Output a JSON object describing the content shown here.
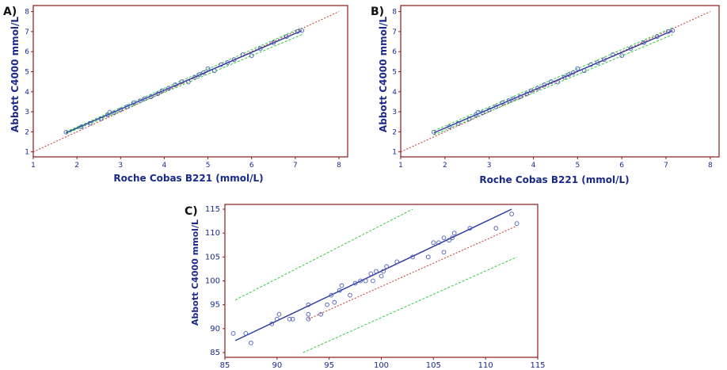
{
  "colors": {
    "frame": "#8b1a1a",
    "regression": "#2a3aa0",
    "identity": "#c0392b",
    "bounds": "#2ecc40",
    "points": "#4a5ab8",
    "text": "#1a2a8a"
  },
  "chart_data": [
    {
      "panel": "A)",
      "type": "scatter",
      "xlabel": "Roche Cobas B221 (mmol/L)",
      "ylabel": "Abbott C4000 mmol/L",
      "xlim": [
        1,
        8.2
      ],
      "ylim": [
        0.75,
        8.3
      ],
      "xticks": [
        1,
        2,
        3,
        4,
        5,
        6,
        7,
        8
      ],
      "yticks": [
        1,
        2,
        3,
        4,
        5,
        6,
        7,
        8
      ],
      "identity_line": [
        [
          1,
          1
        ],
        [
          8,
          8
        ]
      ],
      "regression_line": [
        [
          1.75,
          1.95
        ],
        [
          7.15,
          7.05
        ]
      ],
      "upper_bound": [
        [
          1.75,
          2.0
        ],
        [
          7.15,
          7.2
        ]
      ],
      "lower_bound": [
        [
          1.75,
          1.9
        ],
        [
          7.15,
          6.85
        ]
      ],
      "points": [
        [
          1.75,
          1.98
        ],
        [
          2.1,
          2.25
        ],
        [
          2.3,
          2.42
        ],
        [
          2.55,
          2.65
        ],
        [
          2.7,
          2.85
        ],
        [
          2.75,
          2.98
        ],
        [
          2.85,
          2.95
        ],
        [
          3.0,
          3.1
        ],
        [
          3.15,
          3.25
        ],
        [
          3.3,
          3.45
        ],
        [
          3.45,
          3.55
        ],
        [
          3.55,
          3.65
        ],
        [
          3.7,
          3.75
        ],
        [
          3.85,
          3.9
        ],
        [
          3.95,
          4.05
        ],
        [
          4.1,
          4.18
        ],
        [
          4.25,
          4.35
        ],
        [
          4.4,
          4.5
        ],
        [
          4.55,
          4.48
        ],
        [
          4.7,
          4.72
        ],
        [
          4.8,
          4.85
        ],
        [
          4.9,
          4.95
        ],
        [
          5.0,
          5.15
        ],
        [
          5.15,
          5.05
        ],
        [
          5.3,
          5.35
        ],
        [
          5.45,
          5.45
        ],
        [
          5.6,
          5.6
        ],
        [
          5.8,
          5.85
        ],
        [
          6.0,
          5.8
        ],
        [
          6.2,
          6.15
        ],
        [
          6.5,
          6.45
        ],
        [
          6.8,
          6.75
        ],
        [
          7.05,
          7.0
        ],
        [
          7.15,
          7.05
        ]
      ]
    },
    {
      "panel": "B)",
      "type": "scatter",
      "xlabel": "Roche Cobas B221 (mmol/L)",
      "ylabel": "Abbott C4000 mmol/L",
      "xlim": [
        1,
        8.2
      ],
      "ylim": [
        0.75,
        8.3
      ],
      "xticks": [
        1,
        2,
        3,
        4,
        5,
        6,
        7,
        8
      ],
      "yticks": [
        1,
        2,
        3,
        4,
        5,
        6,
        7,
        8
      ],
      "identity_line": [
        [
          1,
          1
        ],
        [
          8,
          8
        ]
      ],
      "regression_line": [
        [
          1.75,
          1.95
        ],
        [
          7.15,
          7.05
        ]
      ],
      "upper_bound": [
        [
          1.75,
          2.05
        ],
        [
          7.15,
          7.2
        ]
      ],
      "lower_bound": [
        [
          1.75,
          1.85
        ],
        [
          7.15,
          6.85
        ]
      ],
      "points": [
        [
          1.75,
          1.98
        ],
        [
          2.1,
          2.25
        ],
        [
          2.3,
          2.42
        ],
        [
          2.55,
          2.65
        ],
        [
          2.7,
          2.85
        ],
        [
          2.75,
          2.98
        ],
        [
          2.85,
          2.95
        ],
        [
          3.0,
          3.1
        ],
        [
          3.15,
          3.25
        ],
        [
          3.3,
          3.45
        ],
        [
          3.45,
          3.55
        ],
        [
          3.55,
          3.65
        ],
        [
          3.7,
          3.75
        ],
        [
          3.85,
          3.9
        ],
        [
          3.95,
          4.05
        ],
        [
          4.1,
          4.18
        ],
        [
          4.25,
          4.35
        ],
        [
          4.4,
          4.5
        ],
        [
          4.55,
          4.48
        ],
        [
          4.7,
          4.72
        ],
        [
          4.8,
          4.85
        ],
        [
          4.9,
          4.95
        ],
        [
          5.0,
          5.15
        ],
        [
          5.15,
          5.05
        ],
        [
          5.3,
          5.35
        ],
        [
          5.45,
          5.45
        ],
        [
          5.6,
          5.6
        ],
        [
          5.8,
          5.85
        ],
        [
          6.0,
          5.8
        ],
        [
          6.2,
          6.15
        ],
        [
          6.5,
          6.45
        ],
        [
          6.8,
          6.75
        ],
        [
          7.05,
          7.0
        ],
        [
          7.15,
          7.05
        ]
      ]
    },
    {
      "panel": "C)",
      "type": "scatter",
      "xlabel": "",
      "ylabel": "Abbott C4000 mmol/L",
      "xlim": [
        85,
        115
      ],
      "ylim": [
        84,
        116
      ],
      "xticks": [
        85,
        90,
        95,
        100,
        105,
        110,
        115
      ],
      "yticks": [
        85,
        90,
        95,
        100,
        105,
        110,
        115
      ],
      "identity_line": [
        [
          93,
          92
        ],
        [
          113,
          111.5
        ]
      ],
      "regression_line": [
        [
          86,
          87.5
        ],
        [
          112.5,
          115
        ]
      ],
      "upper_bound": [
        [
          86,
          96
        ],
        [
          103,
          115
        ]
      ],
      "lower_bound": [
        [
          92.5,
          85
        ],
        [
          113,
          105
        ]
      ],
      "points": [
        [
          85.8,
          89
        ],
        [
          87,
          89
        ],
        [
          87.5,
          87
        ],
        [
          89.5,
          91
        ],
        [
          90,
          92
        ],
        [
          90.2,
          93
        ],
        [
          91.2,
          92
        ],
        [
          91.5,
          92
        ],
        [
          93,
          92
        ],
        [
          93,
          95
        ],
        [
          93,
          93
        ],
        [
          94.2,
          93
        ],
        [
          94.8,
          95
        ],
        [
          95.2,
          97
        ],
        [
          95.5,
          95.5
        ],
        [
          96,
          98
        ],
        [
          96.2,
          99
        ],
        [
          97,
          97
        ],
        [
          97.5,
          99.5
        ],
        [
          98,
          100
        ],
        [
          98.5,
          100
        ],
        [
          99,
          101.5
        ],
        [
          99.2,
          100
        ],
        [
          99.5,
          102
        ],
        [
          100,
          101
        ],
        [
          100.2,
          102
        ],
        [
          100.5,
          103
        ],
        [
          101.5,
          104
        ],
        [
          103,
          105
        ],
        [
          104.5,
          105
        ],
        [
          105,
          108
        ],
        [
          105.5,
          108
        ],
        [
          106,
          109
        ],
        [
          106,
          106
        ],
        [
          106.5,
          108.5
        ],
        [
          106.8,
          109
        ],
        [
          107,
          110
        ],
        [
          108.5,
          111
        ],
        [
          111,
          111
        ],
        [
          112.5,
          114
        ],
        [
          113,
          112
        ]
      ]
    }
  ]
}
